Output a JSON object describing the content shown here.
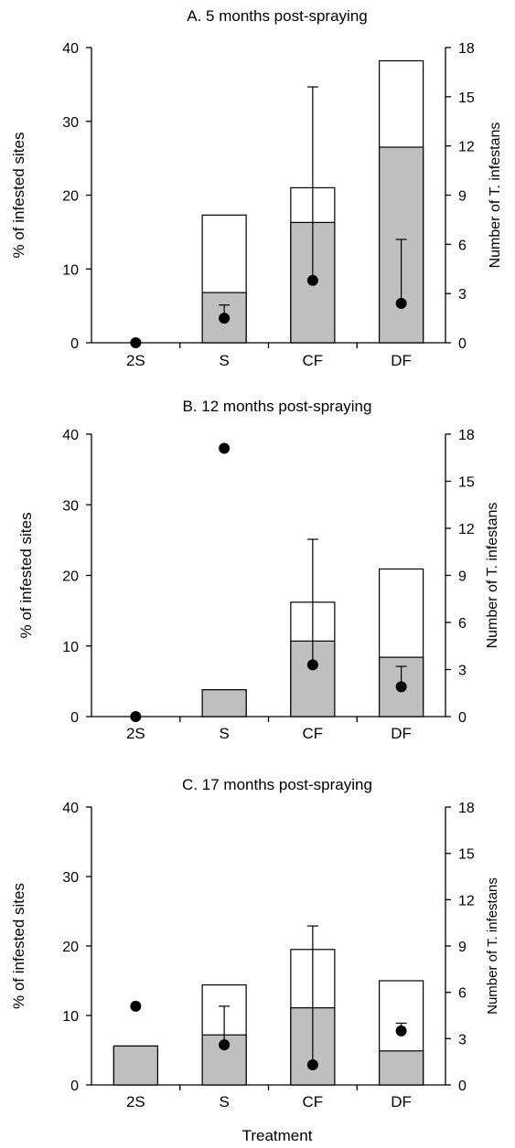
{
  "chart_data": [
    {
      "type": "bar",
      "title": "A. 5 months post-spraying",
      "categories": [
        "2S",
        "S",
        "CF",
        "DF"
      ],
      "ylabel": "% of infested sites",
      "y2label": "Number of T. infestans",
      "ylim": [
        0,
        40
      ],
      "y2lim": [
        0,
        18
      ],
      "yticks": [
        0,
        10,
        20,
        30,
        40
      ],
      "y2ticks": [
        0,
        3,
        6,
        9,
        12,
        15,
        18
      ],
      "series": [
        {
          "values": [
            0,
            6.8,
            16.3,
            26.5
          ],
          "color": "#bfbfbf"
        },
        {
          "values": [
            0,
            17.3,
            21.0,
            38.2
          ],
          "color": "#ffffff"
        },
        {
          "values": [
            0,
            1.5,
            3.8,
            2.4
          ],
          "axis": "right",
          "marker": "circle"
        }
      ],
      "error_bars_upper": [
        null,
        2.3,
        15.6,
        6.3
      ]
    },
    {
      "type": "bar",
      "title": "B. 12 months post-spraying",
      "categories": [
        "2S",
        "S",
        "CF",
        "DF"
      ],
      "ylabel": "% of infested sites",
      "y2label": "Number of T. infestans",
      "ylim": [
        0,
        40
      ],
      "y2lim": [
        0,
        18
      ],
      "yticks": [
        0,
        10,
        20,
        30,
        40
      ],
      "y2ticks": [
        0,
        3,
        6,
        9,
        12,
        15,
        18
      ],
      "series": [
        {
          "values": [
            0,
            3.8,
            10.7,
            8.4
          ],
          "color": "#bfbfbf"
        },
        {
          "values": [
            0,
            3.8,
            16.2,
            20.9
          ],
          "color": "#ffffff"
        },
        {
          "values": [
            0,
            17.1,
            3.3,
            1.9
          ],
          "axis": "right",
          "marker": "circle"
        }
      ],
      "error_bars_upper": [
        null,
        null,
        11.3,
        3.2
      ]
    },
    {
      "type": "bar",
      "title": "C. 17 months post-spraying",
      "categories": [
        "2S",
        "S",
        "CF",
        "DF"
      ],
      "ylabel": "% of infested sites",
      "y2label": "Number of T. infestans",
      "xlabel": "Treatment",
      "ylim": [
        0,
        40
      ],
      "y2lim": [
        0,
        18
      ],
      "yticks": [
        0,
        10,
        20,
        30,
        40
      ],
      "y2ticks": [
        0,
        3,
        6,
        9,
        12,
        15,
        18
      ],
      "series": [
        {
          "values": [
            5.6,
            7.2,
            11.1,
            4.9
          ],
          "color": "#bfbfbf"
        },
        {
          "values": [
            5.6,
            14.4,
            19.5,
            15.0
          ],
          "color": "#ffffff"
        },
        {
          "values": [
            5.1,
            2.6,
            1.3,
            3.5
          ],
          "axis": "right",
          "marker": "circle"
        }
      ],
      "error_bars_upper": [
        null,
        5.1,
        10.3,
        4.0
      ]
    }
  ]
}
